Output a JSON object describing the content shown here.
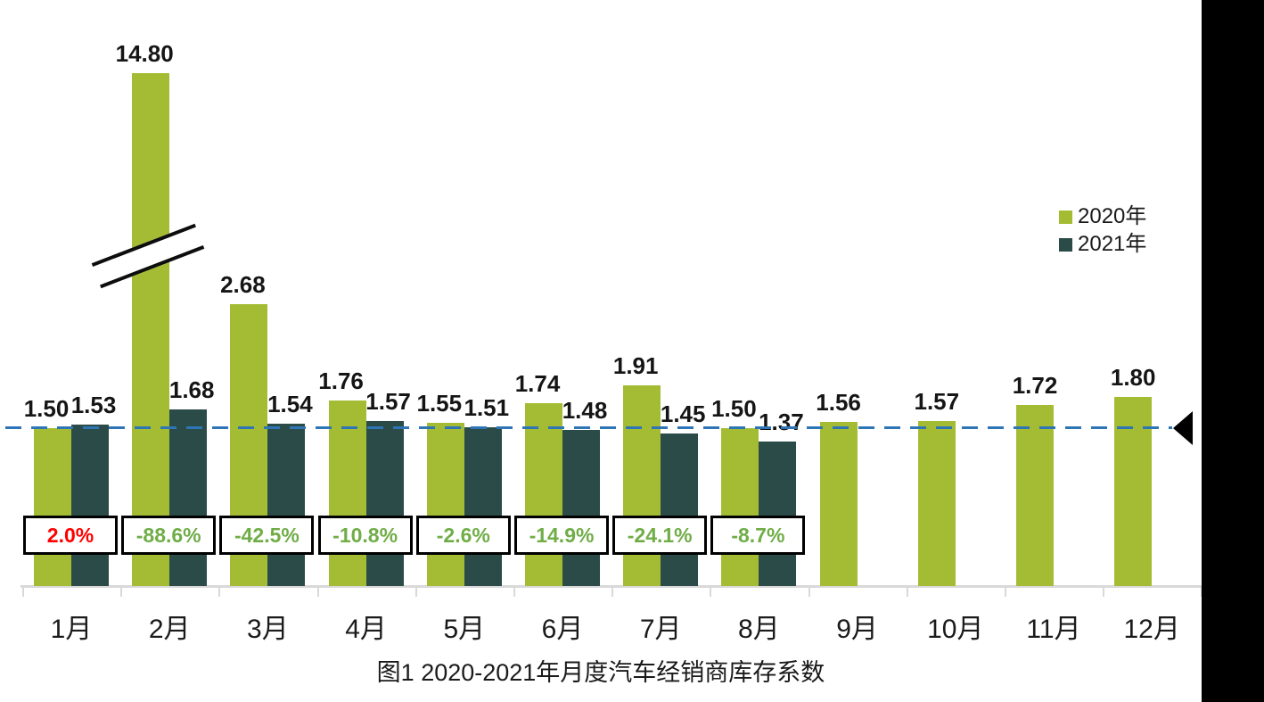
{
  "title": "图1  2020-2021年月度汽车经销商库存系数",
  "legend": {
    "position": "top-right",
    "items": [
      {
        "label": "2020年",
        "color": "#a4bc34"
      },
      {
        "label": "2021年",
        "color": "#2a4b48"
      }
    ]
  },
  "colors": {
    "series_2020": "#a4bc34",
    "series_2021": "#2a4b48",
    "reference_line": "#2e75b6",
    "positive_change_text": "#ff0000",
    "negative_change_text": "#70ad47",
    "axis": "#d9d9d9",
    "label_text": "#151515",
    "right_panel": "#000000",
    "background": "#ffffff"
  },
  "chart_data": {
    "type": "bar",
    "title": "图1  2020-2021年月度汽车经销商库存系数",
    "categories": [
      "1月",
      "2月",
      "3月",
      "4月",
      "5月",
      "6月",
      "7月",
      "8月",
      "9月",
      "10月",
      "11月",
      "12月"
    ],
    "series": [
      {
        "name": "2020年",
        "color": "#a4bc34",
        "values": [
          1.5,
          14.8,
          2.68,
          1.76,
          1.55,
          1.74,
          1.91,
          1.5,
          1.56,
          1.57,
          1.72,
          1.8
        ]
      },
      {
        "name": "2021年",
        "color": "#2a4b48",
        "values": [
          1.53,
          1.68,
          1.54,
          1.57,
          1.51,
          1.48,
          1.45,
          1.37,
          null,
          null,
          null,
          null
        ]
      }
    ],
    "yoy_change_boxes": [
      {
        "label": "2.0%",
        "color": "#ff0000"
      },
      {
        "label": "-88.6%",
        "color": "#70ad47"
      },
      {
        "label": "-42.5%",
        "color": "#70ad47"
      },
      {
        "label": "-10.8%",
        "color": "#70ad47"
      },
      {
        "label": "-2.6%",
        "color": "#70ad47"
      },
      {
        "label": "-14.9%",
        "color": "#70ad47"
      },
      {
        "label": "-24.1%",
        "color": "#70ad47"
      },
      {
        "label": "-8.7%",
        "color": "#70ad47"
      }
    ],
    "reference_line": {
      "value": 1.5,
      "color": "#2e75b6",
      "style": "dashed",
      "end_marker": "left-pointing-black-triangle"
    },
    "axis_break": {
      "series": "2020年",
      "category": "2月",
      "note": "double-slash break marks; 14.80 bar clipped at top of plot"
    },
    "ylim": [
      0,
      5.6
    ],
    "y_axis": "hidden",
    "grid": "off",
    "legend_position": "top-right"
  }
}
